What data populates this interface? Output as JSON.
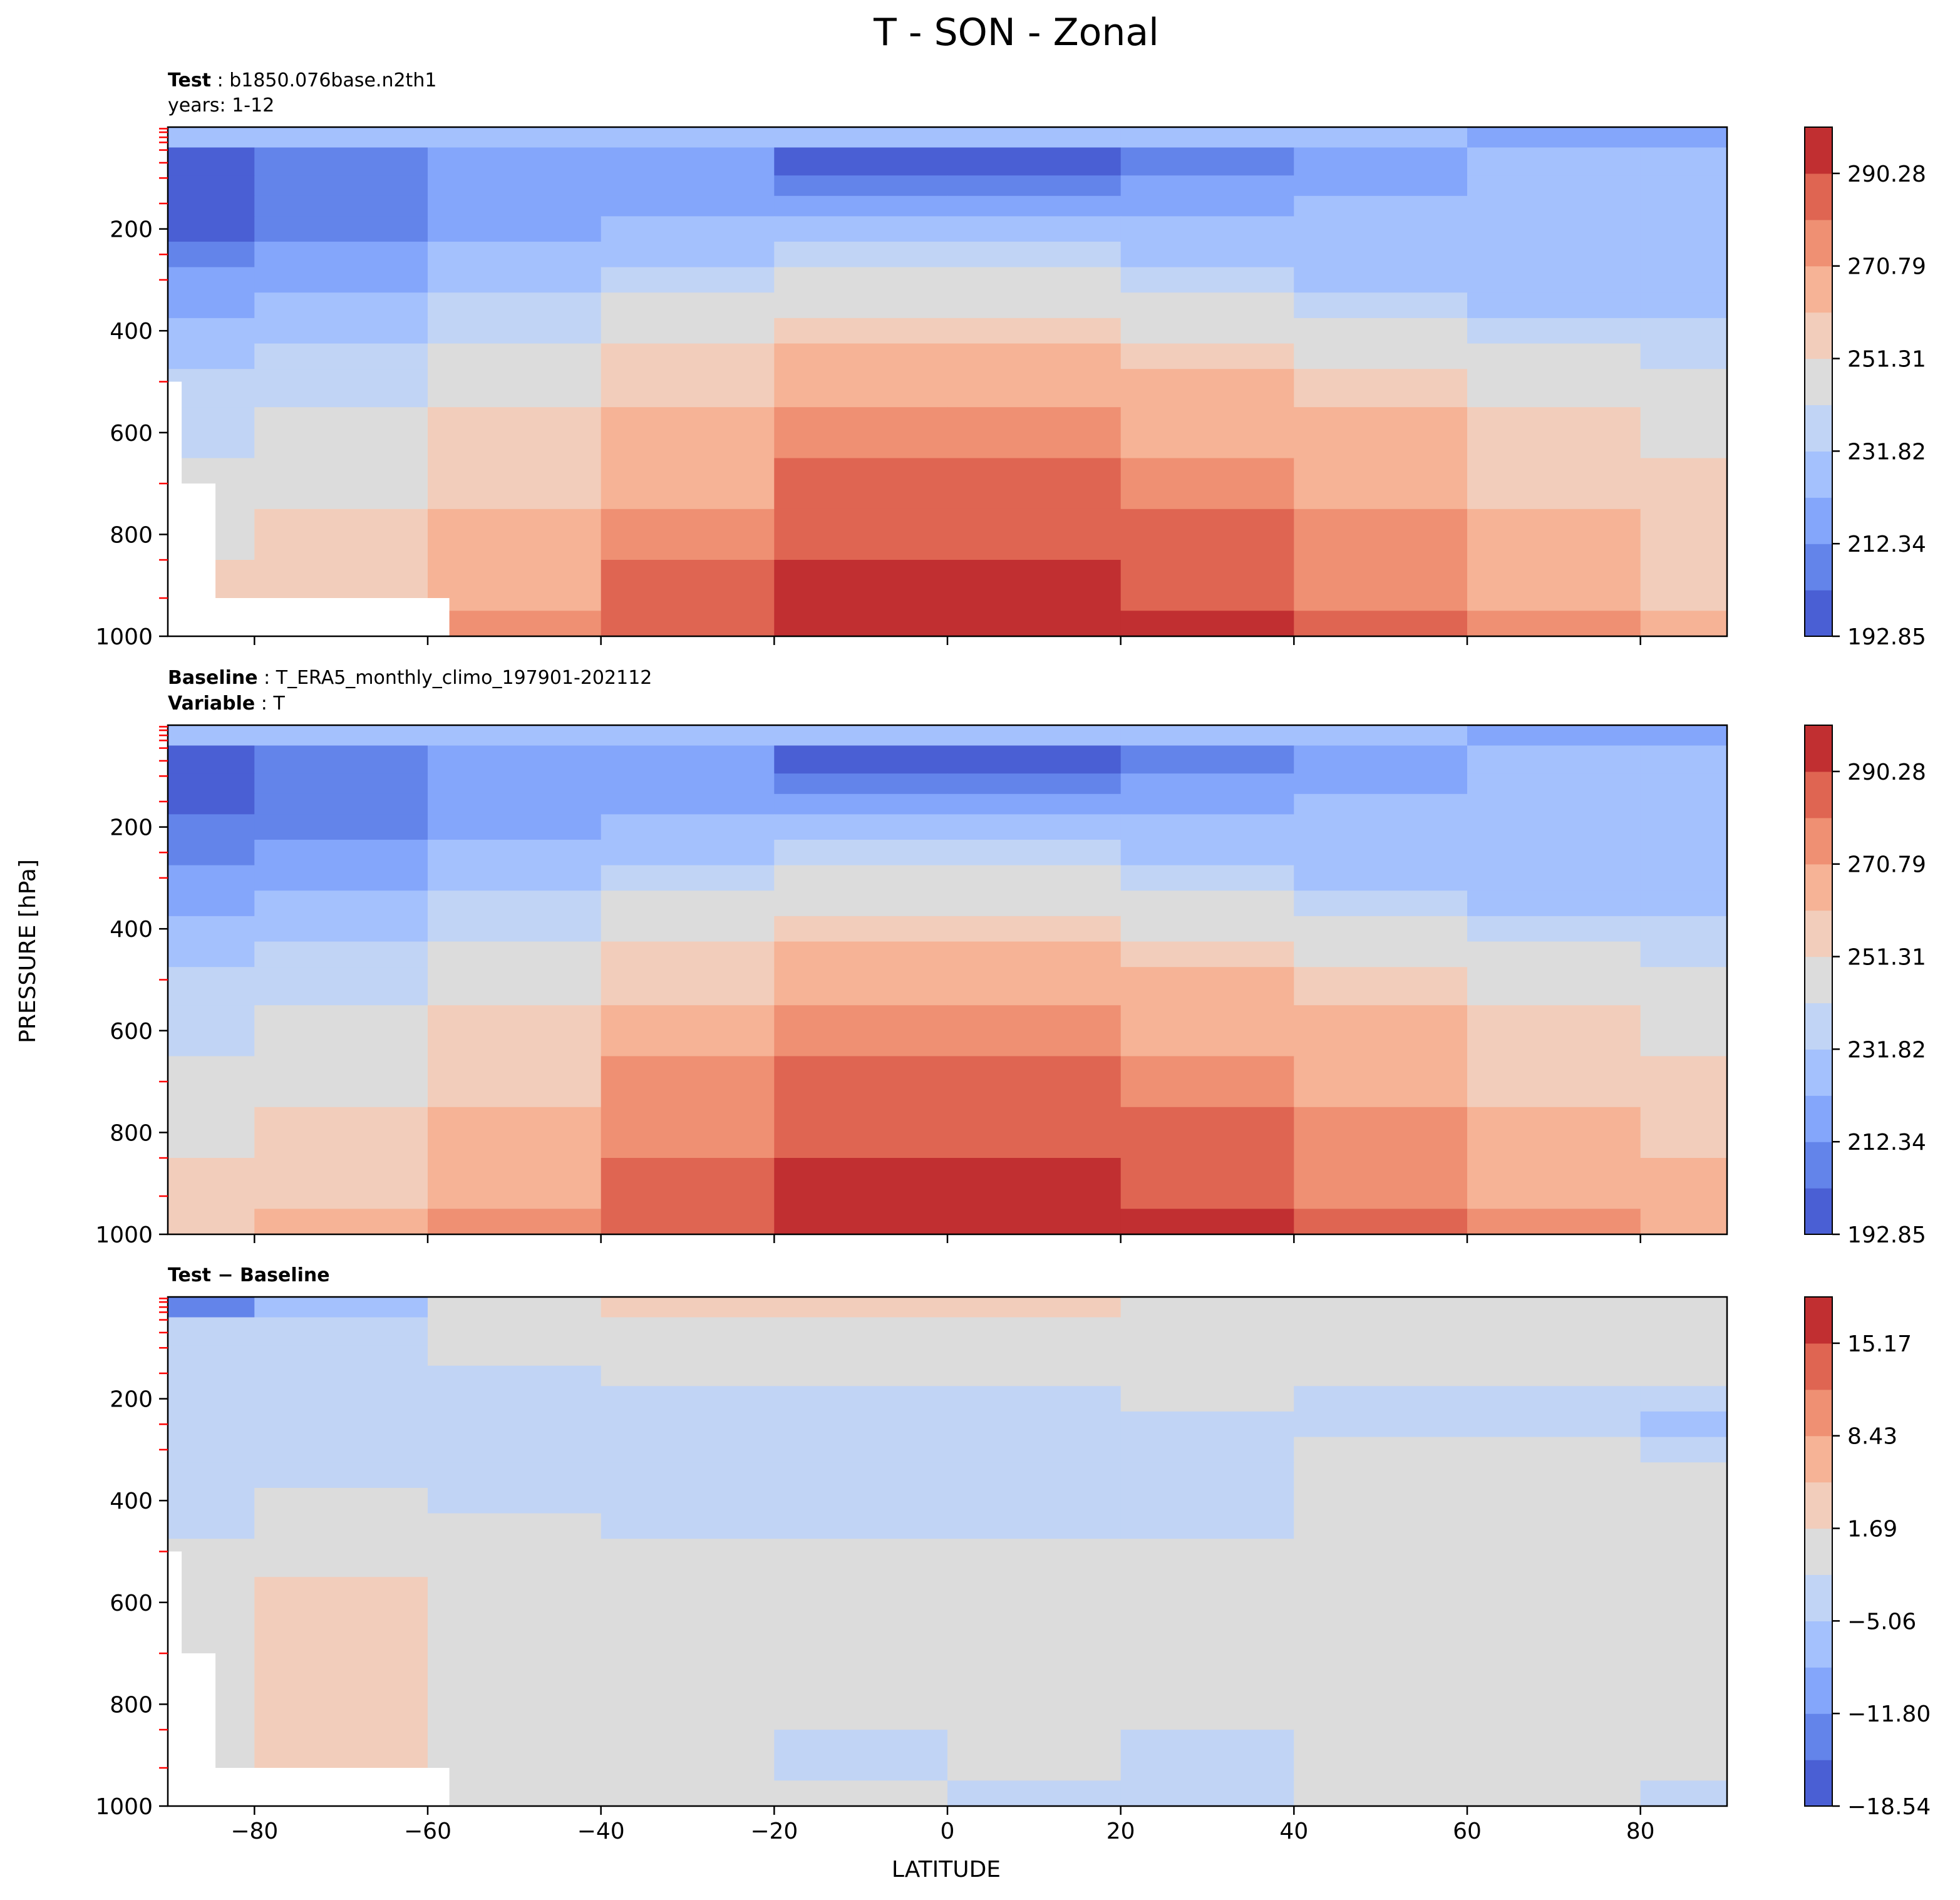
{
  "figure": {
    "title": "T - SON - Zonal",
    "xlabel": "LATITUDE",
    "ylabel": "PRESSURE [hPa]"
  },
  "colors": {
    "levels": [
      "#4a5fd4",
      "#6384ea",
      "#84a6fb",
      "#a4c1fd",
      "#c1d4f5",
      "#dcdcdc",
      "#f2cdbb",
      "#f6b396",
      "#ef9073",
      "#df6552",
      "#c12f31"
    ],
    "missing": "#ffffff",
    "level_tick": "#ff0000"
  },
  "chart_data": [
    {
      "type": "contour",
      "panel": "test",
      "header": {
        "line1_bold": "Test",
        "line1_text": "b1850.076base.n2th1",
        "line2_text": "years: 1-12"
      },
      "x_ticks": [
        -80,
        -60,
        -40,
        -20,
        0,
        20,
        40,
        60,
        80
      ],
      "xlim": [
        -90,
        90
      ],
      "y_ticks": [
        200,
        400,
        600,
        800,
        1000
      ],
      "ylim": [
        1000,
        0
      ],
      "colorbar": {
        "ticks": [
          "290.28",
          "270.79",
          "251.31",
          "231.82",
          "212.34",
          "192.85"
        ],
        "min": 192.85,
        "max": 299.99,
        "levels": 11
      },
      "field": {
        "lat_points": [
          -90,
          -70,
          -50,
          -30,
          -10,
          10,
          30,
          50,
          70,
          90
        ],
        "pressure_levels": [
          10,
          70,
          120,
          150,
          200,
          250,
          300,
          350,
          400,
          450,
          500,
          600,
          700,
          800,
          900,
          1000
        ],
        "level_index": [
          [
            3,
            3,
            3,
            3,
            3,
            3,
            3,
            3,
            2,
            2
          ],
          [
            0,
            1,
            2,
            2,
            0,
            0,
            1,
            2,
            3,
            3
          ],
          [
            0,
            1,
            2,
            2,
            1,
            1,
            2,
            2,
            3,
            3
          ],
          [
            0,
            1,
            2,
            2,
            2,
            2,
            2,
            3,
            3,
            3
          ],
          [
            0,
            1,
            2,
            3,
            3,
            3,
            3,
            3,
            3,
            3
          ],
          [
            1,
            2,
            3,
            3,
            4,
            4,
            3,
            3,
            3,
            3
          ],
          [
            2,
            2,
            3,
            4,
            5,
            5,
            4,
            3,
            3,
            3
          ],
          [
            2,
            3,
            4,
            5,
            5,
            5,
            5,
            4,
            3,
            3
          ],
          [
            3,
            3,
            4,
            5,
            6,
            6,
            5,
            5,
            4,
            4
          ],
          [
            3,
            4,
            5,
            6,
            7,
            7,
            6,
            5,
            5,
            4
          ],
          [
            4,
            4,
            5,
            6,
            7,
            7,
            7,
            6,
            5,
            5
          ],
          [
            4,
            5,
            6,
            7,
            8,
            8,
            7,
            7,
            6,
            5
          ],
          [
            5,
            5,
            6,
            7,
            9,
            9,
            8,
            7,
            6,
            6
          ],
          [
            5,
            6,
            7,
            8,
            9,
            9,
            9,
            8,
            7,
            6
          ],
          [
            6,
            6,
            7,
            9,
            10,
            10,
            9,
            8,
            7,
            6
          ],
          [
            6,
            6,
            8,
            9,
            10,
            10,
            10,
            9,
            8,
            7
          ]
        ]
      }
    },
    {
      "type": "contour",
      "panel": "baseline",
      "header": {
        "line1_bold": "Baseline",
        "line1_text": "T_ERA5_monthly_climo_197901-202112",
        "line2_bold": "Variable",
        "line2_text": "T"
      },
      "x_ticks": [
        -80,
        -60,
        -40,
        -20,
        0,
        20,
        40,
        60,
        80
      ],
      "xlim": [
        -90,
        90
      ],
      "y_ticks": [
        200,
        400,
        600,
        800,
        1000
      ],
      "ylim": [
        1000,
        0
      ],
      "colorbar": {
        "ticks": [
          "290.28",
          "270.79",
          "251.31",
          "231.82",
          "212.34",
          "192.85"
        ],
        "min": 192.85,
        "max": 299.99,
        "levels": 11
      },
      "field": {
        "lat_points": [
          -90,
          -70,
          -50,
          -30,
          -10,
          10,
          30,
          50,
          70,
          90
        ],
        "pressure_levels": [
          10,
          70,
          120,
          150,
          200,
          250,
          300,
          350,
          400,
          450,
          500,
          600,
          700,
          800,
          900,
          1000
        ],
        "level_index": [
          [
            3,
            3,
            3,
            3,
            3,
            3,
            3,
            3,
            2,
            2
          ],
          [
            0,
            1,
            2,
            2,
            0,
            0,
            1,
            2,
            3,
            3
          ],
          [
            0,
            1,
            2,
            2,
            1,
            1,
            2,
            2,
            3,
            3
          ],
          [
            0,
            1,
            2,
            2,
            2,
            2,
            2,
            3,
            3,
            3
          ],
          [
            1,
            1,
            2,
            3,
            3,
            3,
            3,
            3,
            3,
            3
          ],
          [
            1,
            2,
            3,
            3,
            4,
            4,
            3,
            3,
            3,
            3
          ],
          [
            2,
            2,
            3,
            4,
            5,
            5,
            4,
            3,
            3,
            3
          ],
          [
            2,
            3,
            4,
            5,
            5,
            5,
            5,
            4,
            3,
            3
          ],
          [
            3,
            3,
            4,
            5,
            6,
            6,
            5,
            5,
            4,
            4
          ],
          [
            3,
            4,
            5,
            6,
            7,
            7,
            6,
            5,
            5,
            4
          ],
          [
            4,
            4,
            5,
            6,
            7,
            7,
            7,
            6,
            5,
            5
          ],
          [
            4,
            5,
            6,
            7,
            8,
            8,
            7,
            7,
            6,
            5
          ],
          [
            5,
            5,
            6,
            8,
            9,
            9,
            8,
            7,
            6,
            6
          ],
          [
            5,
            6,
            7,
            8,
            9,
            9,
            9,
            8,
            7,
            6
          ],
          [
            6,
            6,
            7,
            9,
            10,
            10,
            9,
            8,
            7,
            7
          ],
          [
            6,
            7,
            8,
            9,
            10,
            10,
            10,
            9,
            8,
            7
          ]
        ]
      }
    },
    {
      "type": "contour",
      "panel": "difference",
      "header": {
        "line1_bold": "Test − Baseline"
      },
      "x_ticks": [
        -80,
        -60,
        -40,
        -20,
        0,
        20,
        40,
        60,
        80
      ],
      "xlim": [
        -90,
        90
      ],
      "y_ticks": [
        200,
        400,
        600,
        800,
        1000
      ],
      "ylim": [
        1000,
        0
      ],
      "colorbar": {
        "ticks": [
          "15.17",
          "8.43",
          "1.69",
          "−5.06",
          "−11.80",
          "−18.54"
        ],
        "min": -18.54,
        "max": 18.54,
        "levels": 11
      },
      "field": {
        "lat_points": [
          -90,
          -70,
          -50,
          -30,
          -10,
          10,
          30,
          50,
          70,
          90
        ],
        "pressure_levels": [
          10,
          70,
          120,
          150,
          200,
          250,
          300,
          350,
          400,
          450,
          500,
          600,
          700,
          800,
          900,
          1000
        ],
        "level_index": [
          [
            1,
            3,
            5,
            6,
            6,
            6,
            5,
            5,
            5,
            5
          ],
          [
            4,
            4,
            5,
            5,
            5,
            5,
            5,
            5,
            5,
            5
          ],
          [
            4,
            4,
            5,
            5,
            5,
            5,
            5,
            5,
            5,
            5
          ],
          [
            4,
            4,
            4,
            5,
            5,
            5,
            5,
            5,
            5,
            5
          ],
          [
            4,
            4,
            4,
            4,
            4,
            4,
            5,
            4,
            4,
            4
          ],
          [
            4,
            4,
            4,
            4,
            4,
            4,
            4,
            4,
            4,
            3
          ],
          [
            4,
            4,
            4,
            4,
            4,
            4,
            4,
            5,
            5,
            4
          ],
          [
            4,
            4,
            4,
            4,
            4,
            4,
            4,
            5,
            5,
            5
          ],
          [
            4,
            5,
            4,
            4,
            4,
            4,
            4,
            5,
            5,
            5
          ],
          [
            4,
            5,
            5,
            4,
            4,
            4,
            4,
            5,
            5,
            5
          ],
          [
            5,
            5,
            5,
            5,
            5,
            5,
            5,
            5,
            5,
            5
          ],
          [
            5,
            6,
            5,
            5,
            5,
            5,
            5,
            5,
            5,
            5
          ],
          [
            5,
            6,
            5,
            5,
            5,
            5,
            5,
            5,
            5,
            5
          ],
          [
            5,
            6,
            5,
            5,
            5,
            5,
            5,
            5,
            5,
            5
          ],
          [
            5,
            6,
            5,
            5,
            4,
            5,
            4,
            5,
            5,
            5
          ],
          [
            5,
            5,
            5,
            5,
            5,
            4,
            4,
            5,
            5,
            4
          ]
        ]
      }
    }
  ]
}
